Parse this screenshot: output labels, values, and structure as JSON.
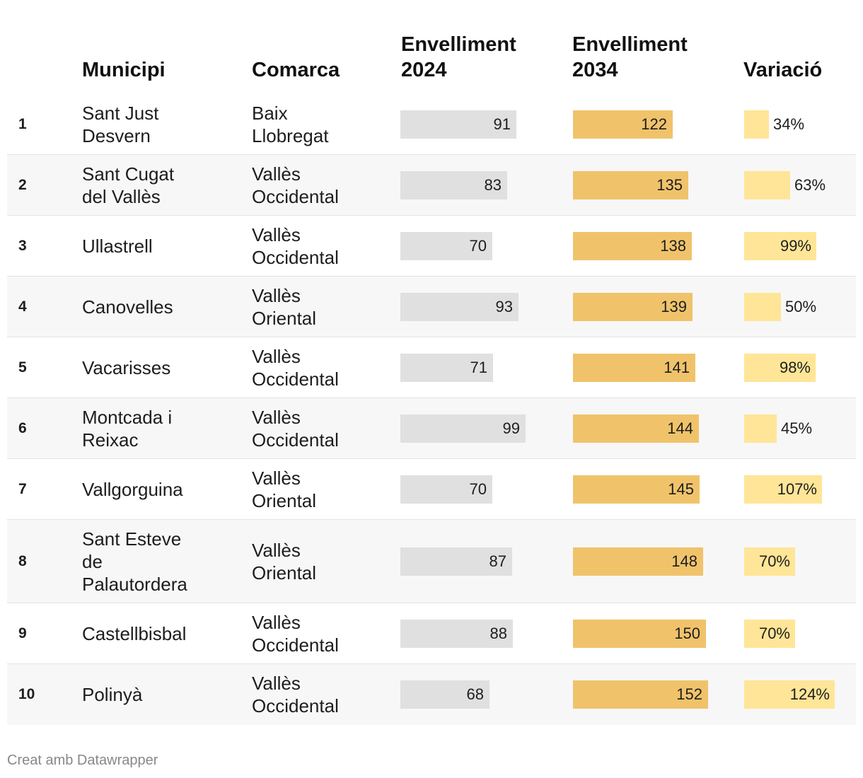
{
  "headers": {
    "municipi": "Municipi",
    "comarca": "Comarca",
    "env2024": "Envelliment\n2024",
    "env2034": "Envelliment\n2034",
    "variacio": "Variació"
  },
  "footer": "Creat amb Datawrapper",
  "colors": {
    "bar2024": "#e0e0e0",
    "bar2034": "#f0c36b",
    "barVar": "#ffe597"
  },
  "chart_data": {
    "type": "table",
    "columns": [
      "",
      "Municipi",
      "Comarca",
      "Envelliment 2024",
      "Envelliment 2034",
      "Variació"
    ],
    "scales": {
      "env_max": 160,
      "var_max": 124
    },
    "rows": [
      {
        "rank": "1",
        "municipi": "Sant Just\nDesvern",
        "comarca": "Baix\nLlobregat",
        "env2024": 91,
        "env2034": 122,
        "variacio": 34,
        "variacio_label": "34%"
      },
      {
        "rank": "2",
        "municipi": "Sant Cugat\ndel Vallès",
        "comarca": "Vallès\nOccidental",
        "env2024": 83,
        "env2034": 135,
        "variacio": 63,
        "variacio_label": "63%"
      },
      {
        "rank": "3",
        "municipi": "Ullastrell",
        "comarca": "Vallès\nOccidental",
        "env2024": 70,
        "env2034": 138,
        "variacio": 99,
        "variacio_label": "99%"
      },
      {
        "rank": "4",
        "municipi": "Canovelles",
        "comarca": "Vallès\nOriental",
        "env2024": 93,
        "env2034": 139,
        "variacio": 50,
        "variacio_label": "50%"
      },
      {
        "rank": "5",
        "municipi": "Vacarisses",
        "comarca": "Vallès\nOccidental",
        "env2024": 71,
        "env2034": 141,
        "variacio": 98,
        "variacio_label": "98%"
      },
      {
        "rank": "6",
        "municipi": "Montcada i\nReixac",
        "comarca": "Vallès\nOccidental",
        "env2024": 99,
        "env2034": 144,
        "variacio": 45,
        "variacio_label": "45%"
      },
      {
        "rank": "7",
        "municipi": "Vallgorguina",
        "comarca": "Vallès\nOriental",
        "env2024": 70,
        "env2034": 145,
        "variacio": 107,
        "variacio_label": "107%"
      },
      {
        "rank": "8",
        "municipi": "Sant Esteve\nde\nPalautordera",
        "comarca": "Vallès\nOriental",
        "env2024": 87,
        "env2034": 148,
        "variacio": 70,
        "variacio_label": "70%"
      },
      {
        "rank": "9",
        "municipi": "Castellbisbal",
        "comarca": "Vallès\nOccidental",
        "env2024": 88,
        "env2034": 150,
        "variacio": 70,
        "variacio_label": "70%"
      },
      {
        "rank": "10",
        "municipi": "Polinyà",
        "comarca": "Vallès\nOccidental",
        "env2024": 68,
        "env2034": 152,
        "variacio": 124,
        "variacio_label": "124%"
      }
    ]
  }
}
